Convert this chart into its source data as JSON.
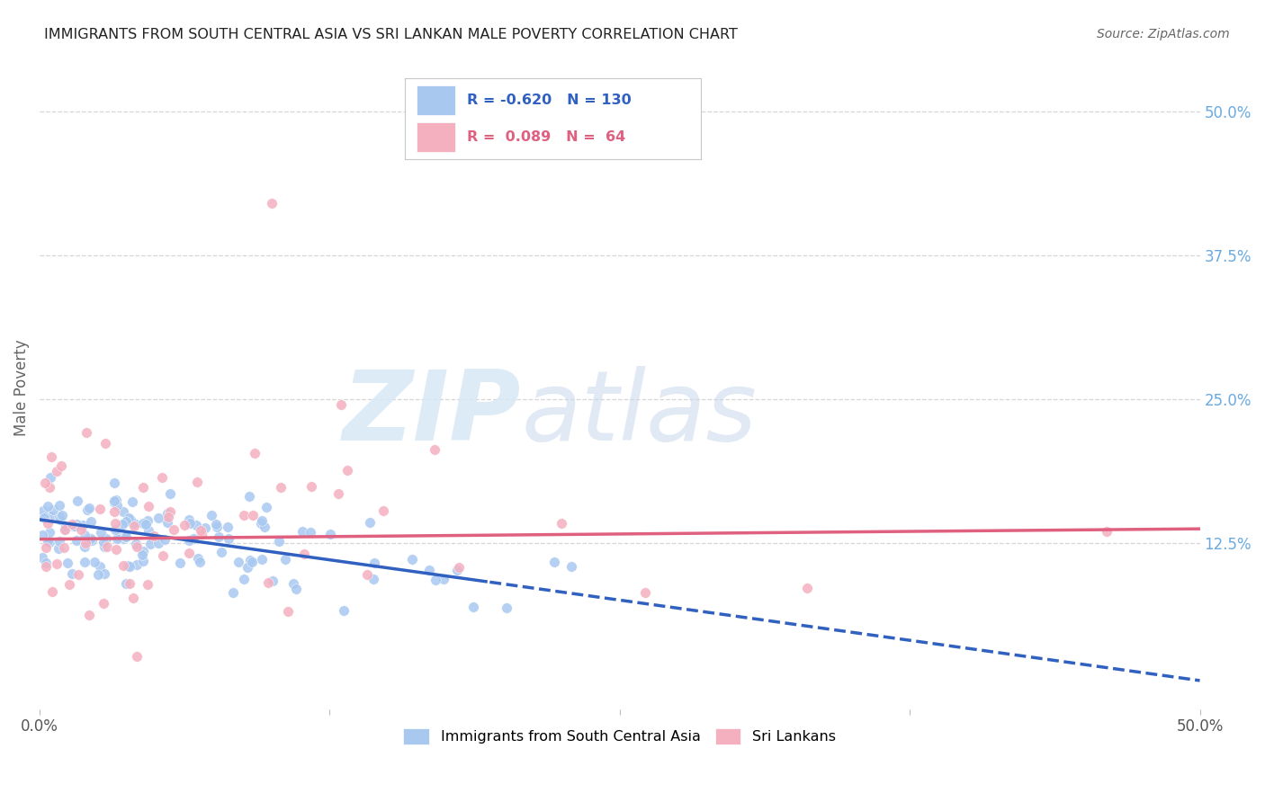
{
  "title": "IMMIGRANTS FROM SOUTH CENTRAL ASIA VS SRI LANKAN MALE POVERTY CORRELATION CHART",
  "source": "Source: ZipAtlas.com",
  "ylabel": "Male Poverty",
  "xlim": [
    0.0,
    0.5
  ],
  "ylim": [
    -0.02,
    0.54
  ],
  "blue_R": -0.62,
  "blue_N": 130,
  "pink_R": 0.089,
  "pink_N": 64,
  "blue_color": "#A8C8F0",
  "pink_color": "#F5B0C0",
  "blue_line_color": "#3060C0",
  "pink_line_color": "#E06080",
  "background_color": "#FFFFFF",
  "grid_color": "#CCCCCC",
  "right_tick_color": "#6AAAE0",
  "ytick_values": [
    0.125,
    0.25,
    0.375,
    0.5
  ],
  "ytick_labels": [
    "12.5%",
    "25.0%",
    "37.5%",
    "50.0%"
  ],
  "blue_line_intercept": 0.145,
  "blue_line_slope": -0.28,
  "pink_line_intercept": 0.128,
  "pink_line_slope": 0.018
}
